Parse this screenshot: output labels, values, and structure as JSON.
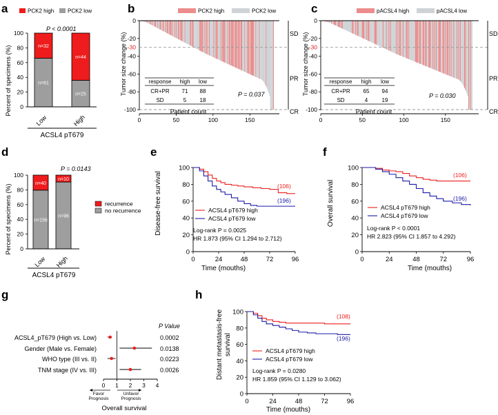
{
  "colors": {
    "red": "#ee1c1c",
    "grey": "#9e9e9e",
    "lightred": "#ec8c8c",
    "lightgrey": "#cfd3d6",
    "navy": "#1a1aa6",
    "dash": "#9a9a9a",
    "sdred": "#e02020"
  },
  "panels": {
    "a": "a",
    "b": "b",
    "c": "c",
    "d": "d",
    "e": "e",
    "f": "f",
    "g": "g",
    "h": "h"
  },
  "panel_a": {
    "legend": [
      "PCK2 high",
      "PCK2 low"
    ],
    "pvalue": "P < 0.0001",
    "ylabel": "Percent of specimens  (%)",
    "xlabel": "ACSL4 pT679",
    "yticks": [
      "0",
      "20",
      "40",
      "60",
      "80",
      "100"
    ],
    "categories": [
      "Low",
      "High"
    ],
    "high_labels": [
      "n=32",
      "n=44"
    ],
    "low_labels": [
      "n=61",
      "n=25"
    ]
  },
  "panel_b": {
    "legend": [
      "PCK2 high",
      "PCK2 low"
    ],
    "ylabel": "Tumor size change (%)",
    "xlabel": "Patient count",
    "yticks": [
      "0",
      "-20",
      "-40",
      "-60",
      "-80",
      "-100"
    ],
    "xticks": [
      "0",
      "50",
      "100",
      "150"
    ],
    "thirty": "-30",
    "zones": [
      "SD",
      "PR",
      "CR"
    ],
    "table": {
      "headers": [
        "response",
        "high",
        "low"
      ],
      "rows": [
        [
          "CR+PR",
          "71",
          "88"
        ],
        [
          "SD",
          "5",
          "18"
        ]
      ]
    },
    "pvalue": "P = 0.037"
  },
  "panel_c": {
    "legend": [
      "pACSL4 high",
      "pACSL4 low"
    ],
    "ylabel": "Tumor size change (%)",
    "xlabel": "Patient count",
    "yticks": [
      "0",
      "-20",
      "-40",
      "-60",
      "-80",
      "-100"
    ],
    "xticks": [
      "0",
      "50",
      "100",
      "150"
    ],
    "thirty": "-30",
    "zones": [
      "SD",
      "PR",
      "CR"
    ],
    "table": {
      "headers": [
        "response",
        "high",
        "low"
      ],
      "rows": [
        [
          "CR+PR",
          "65",
          "94"
        ],
        [
          "SD",
          "4",
          "19"
        ]
      ]
    },
    "pvalue": "P = 0.030"
  },
  "panel_d": {
    "pvalue": "P = 0.0143",
    "ylabel": "Percent of specimens  (%)",
    "xlabel": "ACSL4 pT679",
    "yticks": [
      "0",
      "20",
      "40",
      "60",
      "80",
      "100"
    ],
    "categories": [
      "Low",
      "High"
    ],
    "rec_labels": [
      "n=40",
      "n=10"
    ],
    "norec_labels": [
      "n=156",
      "n=96"
    ],
    "legend": [
      "recurrence",
      "no recurrence"
    ]
  },
  "panel_e": {
    "ylabel": "Disease-free survival",
    "xlabel": "Time (mouths)",
    "yticks": [
      "0",
      "20",
      "40",
      "60",
      "80",
      "100"
    ],
    "xticks": [
      "0",
      "24",
      "48",
      "72",
      "96"
    ],
    "n_high": "(106)",
    "n_low": "(196)",
    "legend": [
      "ACSL4 pT679 high",
      "ACSL4 pT679 low"
    ],
    "logrank": "Log-rank P = 0.0025",
    "hr": "HR 1.873 (95% CI 1.294 to 2.712)"
  },
  "panel_f": {
    "ylabel": "Overall  survival",
    "xlabel": "Time (mouths)",
    "yticks": [
      "0",
      "20",
      "40",
      "60",
      "80",
      "100"
    ],
    "xticks": [
      "0",
      "24",
      "48",
      "72",
      "96"
    ],
    "n_high": "(106)",
    "n_low": "(196)",
    "legend": [
      "ACSL4 pT679 high",
      "ACSL4 pT679 low"
    ],
    "logrank": "Log-rank P < 0.0001",
    "hr": "HR 2.823 (95% CI 1.857 to 4.292)"
  },
  "panel_g": {
    "pheader": "P Value",
    "rows": [
      {
        "label": "ACSL4_pT679 (High vs. Low)",
        "p": "0.0002"
      },
      {
        "label": "Gender (Male vs. Female)",
        "p": "0.0138"
      },
      {
        "label": "WHO type (III vs. II)",
        "p": "0.0223"
      },
      {
        "label": "TNM stage (IV vs. III)",
        "p": "0.0026"
      }
    ],
    "xticks": [
      "0",
      "1",
      "2",
      "3",
      "4"
    ],
    "favor": [
      "Favor",
      "Prognosis"
    ],
    "unfavor": [
      "Unfavor",
      "Prognosis"
    ],
    "xlabel": "Overall  survival"
  },
  "panel_h": {
    "ylabel": [
      "Distant metastasis-free",
      "survival"
    ],
    "xlabel": "Time (mouths)",
    "yticks": [
      "0",
      "20",
      "40",
      "60",
      "80",
      "100"
    ],
    "xticks": [
      "0",
      "24",
      "48",
      "72",
      "96"
    ],
    "n_high": "(108)",
    "n_low": "(196)",
    "legend": [
      "ACSL4 pT679 high",
      "ACSL4 pT679 low"
    ],
    "logrank": "Log-rank P = 0.0280",
    "hr": "HR 1.859 (95% CI 1.129 to 3.062)"
  },
  "chart_data": [
    {
      "panel": "a",
      "type": "bar",
      "stacked": true,
      "categories": [
        "Low",
        "High"
      ],
      "series": [
        {
          "name": "PCK2 high",
          "values": [
            34,
            64
          ]
        },
        {
          "name": "PCK2 low",
          "values": [
            66,
            36
          ]
        }
      ],
      "counts": {
        "PCK2 high": [
          32,
          44
        ],
        "PCK2 low": [
          61,
          25
        ]
      },
      "ylim": [
        0,
        100
      ]
    },
    {
      "panel": "b",
      "type": "bar",
      "title": "waterfall",
      "x_count": 182,
      "ylim": [
        -100,
        0
      ],
      "threshold": -30,
      "series": [
        {
          "name": "PCK2 high"
        },
        {
          "name": "PCK2 low"
        }
      ]
    },
    {
      "panel": "c",
      "type": "bar",
      "title": "waterfall",
      "x_count": 182,
      "ylim": [
        -100,
        0
      ],
      "threshold": -30,
      "series": [
        {
          "name": "pACSL4 high"
        },
        {
          "name": "pACSL4 low"
        }
      ]
    },
    {
      "panel": "d",
      "type": "bar",
      "stacked": true,
      "categories": [
        "Low",
        "High"
      ],
      "series": [
        {
          "name": "recurrence",
          "values": [
            20.4,
            9.4
          ]
        },
        {
          "name": "no recurrence",
          "values": [
            79.6,
            90.6
          ]
        }
      ],
      "ylim": [
        0,
        100
      ]
    },
    {
      "panel": "e",
      "type": "line",
      "xlim": [
        0,
        96
      ],
      "ylim": [
        0,
        100
      ],
      "series": [
        {
          "name": "ACSL4 pT679 high",
          "x": [
            0,
            6,
            10,
            14,
            18,
            22,
            26,
            30,
            36,
            42,
            48,
            56,
            64,
            72,
            80,
            88,
            96
          ],
          "y": [
            100,
            98,
            95,
            91,
            87,
            84,
            82,
            80,
            79,
            78,
            77,
            76,
            75,
            74,
            70,
            69,
            69
          ]
        },
        {
          "name": "ACSL4 pT679 low",
          "x": [
            0,
            6,
            10,
            14,
            18,
            22,
            26,
            30,
            36,
            42,
            48,
            54,
            60,
            66,
            72,
            80,
            88,
            96
          ],
          "y": [
            100,
            96,
            90,
            84,
            78,
            74,
            71,
            68,
            64,
            60,
            57,
            55,
            54,
            54,
            54,
            54,
            54,
            54
          ]
        }
      ]
    },
    {
      "panel": "f",
      "type": "line",
      "xlim": [
        0,
        96
      ],
      "ylim": [
        0,
        100
      ],
      "series": [
        {
          "name": "ACSL4 pT679 high",
          "x": [
            0,
            12,
            18,
            24,
            30,
            36,
            42,
            48,
            54,
            60,
            66,
            72,
            80,
            88,
            96
          ],
          "y": [
            100,
            99,
            97,
            96,
            95,
            93,
            90,
            88,
            86,
            85,
            84,
            84,
            84,
            84,
            84
          ]
        },
        {
          "name": "ACSL4 pT679 low",
          "x": [
            0,
            12,
            18,
            24,
            30,
            36,
            42,
            48,
            54,
            60,
            66,
            72,
            80,
            88,
            96
          ],
          "y": [
            100,
            98,
            95,
            92,
            88,
            84,
            80,
            75,
            70,
            66,
            63,
            60,
            58,
            56,
            55
          ]
        }
      ]
    },
    {
      "panel": "g",
      "type": "scatter",
      "title": "forest",
      "xlim": [
        0,
        4
      ],
      "series": [
        {
          "name": "hazard ratio",
          "values": [
            0.5,
            2.3,
            0.6,
            2.0
          ],
          "ci_low": [
            0.3,
            1.2,
            0.3,
            1.2
          ],
          "ci_high": [
            0.6,
            3.6,
            0.9,
            2.8
          ]
        }
      ]
    },
    {
      "panel": "h",
      "type": "line",
      "xlim": [
        0,
        96
      ],
      "ylim": [
        0,
        100
      ],
      "series": [
        {
          "name": "ACSL4 pT679 high",
          "x": [
            0,
            6,
            10,
            14,
            18,
            24,
            30,
            36,
            48,
            60,
            72,
            84,
            96
          ],
          "y": [
            100,
            98,
            95,
            92,
            90,
            88,
            87,
            86,
            86,
            86,
            85,
            85,
            85
          ]
        },
        {
          "name": "ACSL4 pT679 low",
          "x": [
            0,
            6,
            10,
            14,
            18,
            24,
            30,
            36,
            42,
            48,
            56,
            64,
            72,
            84,
            96
          ],
          "y": [
            100,
            96,
            92,
            88,
            85,
            83,
            81,
            79,
            77,
            75,
            74,
            73,
            73,
            72,
            72
          ]
        }
      ]
    }
  ]
}
